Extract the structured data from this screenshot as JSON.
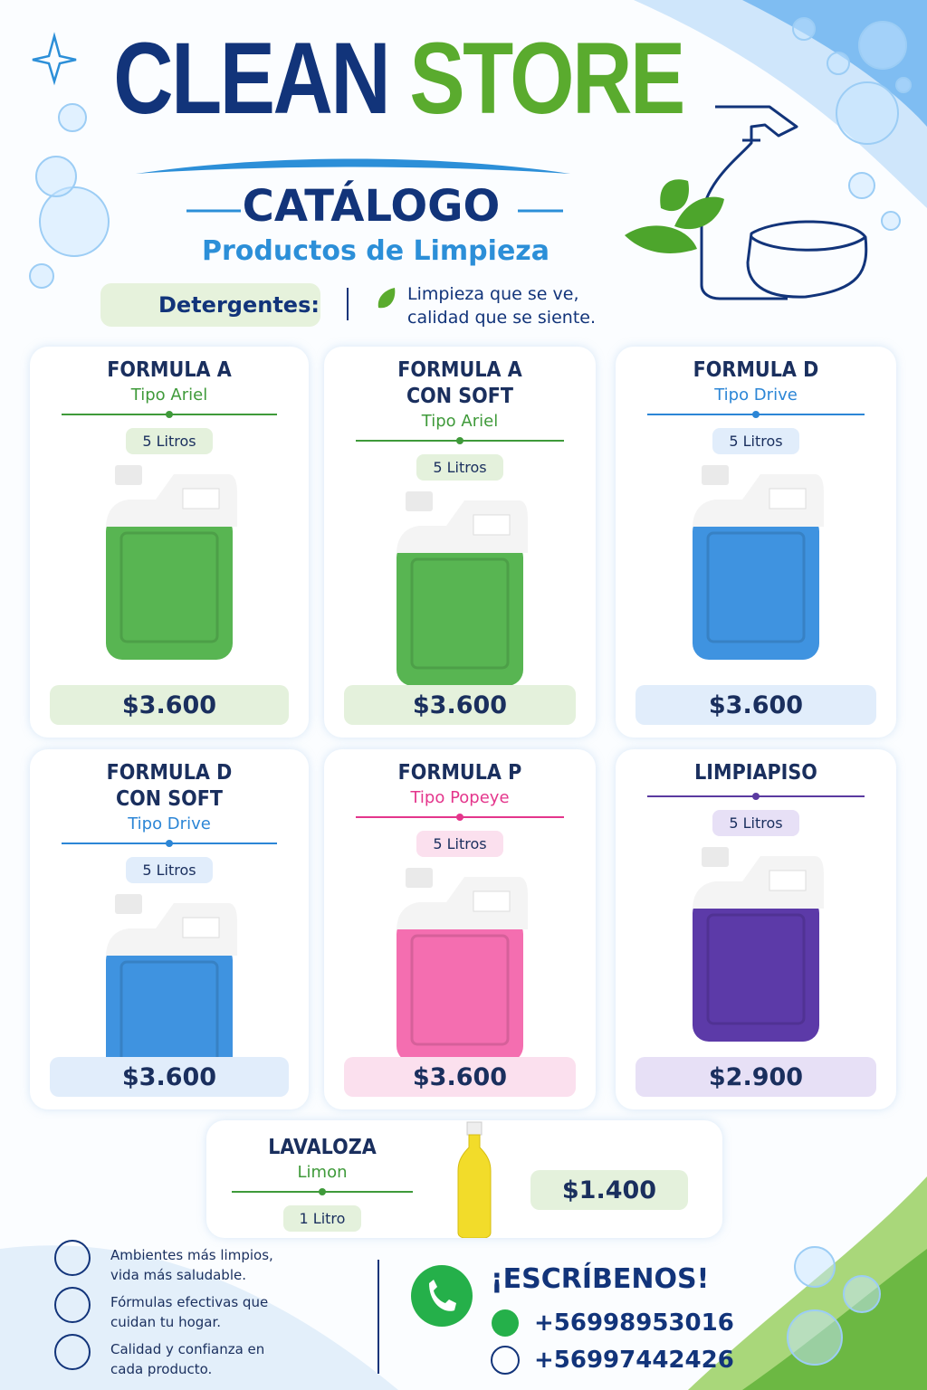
{
  "header": {
    "brand_1": "CLEAN",
    "brand_2": "STORE",
    "title": "CATÁLOGO",
    "subtitle": "Productos de Limpieza",
    "section": "Detergentes:",
    "tagline": [
      "Limpieza que se ve,",
      "calidad que se siente."
    ]
  },
  "products": [
    {
      "name": "FORMULA A",
      "type": "Tipo Ariel",
      "size": "5 Litros",
      "price": "$3.600",
      "color": "green"
    },
    {
      "name": "FORMULA A CON SOFT",
      "type": "Tipo Ariel",
      "size": "5 Litros",
      "price": "$3.600",
      "color": "green"
    },
    {
      "name": "FORMULA D",
      "type": "Tipo Drive",
      "size": "5 Litros",
      "price": "$3.600",
      "color": "blue"
    },
    {
      "name": "FORMULA D CON SOFT",
      "type": "Tipo Drive",
      "size": "5 Litros",
      "price": "$3.600",
      "color": "blue"
    },
    {
      "name": "FORMULA P",
      "type": "Tipo Popeye",
      "size": "5 Litros",
      "price": "$3.600",
      "color": "pink"
    },
    {
      "name": "LIMPIAPISO",
      "size": "5 Litros",
      "price": "$2.900",
      "color": "purple"
    }
  ],
  "featured": {
    "name": "LAVALOZA",
    "type": "Limon",
    "size": "1 Litro",
    "price": "$1.400",
    "color": "green"
  },
  "benefits": [
    [
      "Ambientes más limpios,",
      "vida más saludable."
    ],
    [
      "Fórmulas efectivas que",
      "cuidan tu hogar."
    ],
    [
      "Calidad y confianza en",
      "cada producto."
    ]
  ],
  "contact": {
    "heading": "¡ESCRÍBENOS!",
    "phones": [
      "+56998953016",
      "+56997442426"
    ]
  }
}
